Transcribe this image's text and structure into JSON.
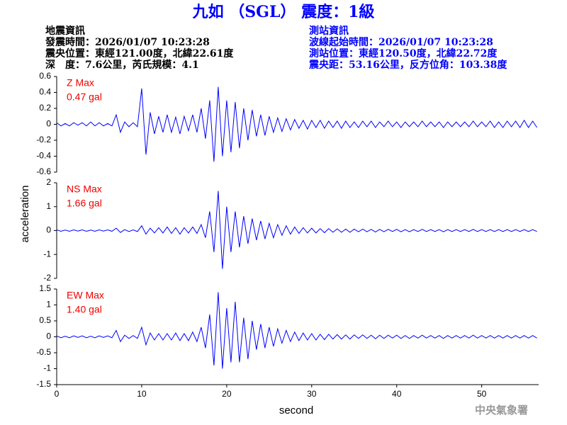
{
  "title": "九如 （SGL） 震度：1級",
  "event_info": [
    "地震資訊",
    "發震時間：2026/01/07 10:23:28",
    "震央位置：東經121.00度，北緯22.61度",
    "深　度：7.6公里，芮氏規模：4.1"
  ],
  "station_info": [
    "測站資訊",
    "波線起始時間：2026/01/07 10:23:28",
    "測站位置：東經120.50度，北緯22.72度",
    "震央距：53.16公里，反方位角：103.38度"
  ],
  "ylabel": "acceleration",
  "footer": "中央氣象署",
  "chart_data": [
    {
      "type": "line",
      "annotation": [
        "Z Max",
        "0.47 gal"
      ],
      "color": "#0000ff",
      "xlim": [
        0,
        56.7
      ],
      "ylim": [
        -0.6,
        0.6
      ],
      "yticks": [
        -0.6,
        -0.4,
        -0.2,
        0,
        0.2,
        0.4,
        0.6
      ],
      "x": [
        0,
        0.5,
        1,
        1.5,
        2,
        2.5,
        3,
        3.5,
        4,
        4.5,
        5,
        5.5,
        6,
        6.5,
        7,
        7.5,
        8,
        8.5,
        9,
        9.5,
        10,
        10.5,
        11,
        11.5,
        12,
        12.5,
        13,
        13.5,
        14,
        14.5,
        15,
        15.5,
        16,
        16.5,
        17,
        17.5,
        18,
        18.5,
        19,
        19.5,
        20,
        20.5,
        21,
        21.5,
        22,
        22.5,
        23,
        23.5,
        24,
        24.5,
        25,
        25.5,
        26,
        26.5,
        27,
        27.5,
        28,
        28.5,
        29,
        29.5,
        30,
        30.5,
        31,
        31.5,
        32,
        32.5,
        33,
        33.5,
        34,
        34.5,
        35,
        35.5,
        36,
        36.5,
        37,
        37.5,
        38,
        38.5,
        39,
        39.5,
        40,
        40.5,
        41,
        41.5,
        42,
        42.5,
        43,
        43.5,
        44,
        44.5,
        45,
        45.5,
        46,
        46.5,
        47,
        47.5,
        48,
        48.5,
        49,
        49.5,
        50,
        50.5,
        51,
        51.5,
        52,
        52.5,
        53,
        53.5,
        54,
        54.5,
        55,
        55.5,
        56,
        56.5
      ],
      "values": [
        0.02,
        -0.02,
        0.01,
        -0.02,
        0.02,
        -0.01,
        0.02,
        -0.02,
        0.03,
        -0.02,
        0.02,
        -0.02,
        0.01,
        -0.02,
        0.12,
        -0.1,
        0.03,
        -0.03,
        0.02,
        -0.03,
        0.45,
        -0.38,
        0.15,
        -0.12,
        0.1,
        -0.1,
        0.12,
        -0.1,
        0.09,
        -0.12,
        0.1,
        -0.08,
        0.12,
        -0.1,
        0.2,
        -0.18,
        0.3,
        -0.47,
        0.47,
        -0.4,
        0.3,
        -0.35,
        0.28,
        -0.3,
        0.2,
        -0.2,
        0.18,
        -0.15,
        0.12,
        -0.14,
        0.1,
        -0.1,
        0.08,
        -0.09,
        0.07,
        -0.07,
        0.06,
        -0.05,
        0.05,
        -0.06,
        0.05,
        -0.04,
        0.05,
        -0.05,
        0.04,
        -0.04,
        0.04,
        -0.05,
        0.04,
        -0.04,
        0.03,
        -0.04,
        0.04,
        -0.03,
        0.04,
        -0.04,
        0.03,
        -0.03,
        0.04,
        -0.03,
        0.03,
        -0.04,
        0.03,
        -0.03,
        0.03,
        -0.03,
        0.04,
        -0.03,
        0.03,
        -0.03,
        0.03,
        -0.04,
        0.03,
        -0.03,
        0.03,
        -0.03,
        0.03,
        -0.03,
        0.04,
        -0.03,
        0.03,
        -0.03,
        0.04,
        -0.04,
        0.03,
        -0.04,
        0.04,
        -0.03,
        0.04,
        -0.04,
        0.05,
        -0.04,
        0.04,
        -0.04
      ]
    },
    {
      "type": "line",
      "annotation": [
        "NS Max",
        "1.66 gal"
      ],
      "color": "#0000ff",
      "xlim": [
        0,
        56.7
      ],
      "ylim": [
        -2,
        2
      ],
      "yticks": [
        -2,
        -1,
        0,
        1,
        2
      ],
      "x": [
        0,
        0.5,
        1,
        1.5,
        2,
        2.5,
        3,
        3.5,
        4,
        4.5,
        5,
        5.5,
        6,
        6.5,
        7,
        7.5,
        8,
        8.5,
        9,
        9.5,
        10,
        10.5,
        11,
        11.5,
        12,
        12.5,
        13,
        13.5,
        14,
        14.5,
        15,
        15.5,
        16,
        16.5,
        17,
        17.5,
        18,
        18.5,
        19,
        19.5,
        20,
        20.5,
        21,
        21.5,
        22,
        22.5,
        23,
        23.5,
        24,
        24.5,
        25,
        25.5,
        26,
        26.5,
        27,
        27.5,
        28,
        28.5,
        29,
        29.5,
        30,
        30.5,
        31,
        31.5,
        32,
        32.5,
        33,
        33.5,
        34,
        34.5,
        35,
        35.5,
        36,
        36.5,
        37,
        37.5,
        38,
        38.5,
        39,
        39.5,
        40,
        40.5,
        41,
        41.5,
        42,
        42.5,
        43,
        43.5,
        44,
        44.5,
        45,
        45.5,
        46,
        46.5,
        47,
        47.5,
        48,
        48.5,
        49,
        49.5,
        50,
        50.5,
        51,
        51.5,
        52,
        52.5,
        53,
        53.5,
        54,
        54.5,
        55,
        55.5,
        56,
        56.5
      ],
      "values": [
        0.03,
        -0.03,
        0.02,
        -0.03,
        0.03,
        -0.02,
        0.03,
        -0.03,
        0.02,
        -0.03,
        0.03,
        -0.02,
        0.03,
        -0.03,
        0.1,
        -0.08,
        0.04,
        -0.04,
        0.03,
        -0.04,
        0.2,
        -0.15,
        0.1,
        -0.1,
        0.12,
        -0.1,
        0.15,
        -0.12,
        0.12,
        -0.15,
        0.12,
        -0.1,
        0.15,
        -0.12,
        0.25,
        -0.3,
        0.8,
        -0.9,
        1.66,
        -1.6,
        1.0,
        -0.9,
        0.8,
        -0.7,
        0.6,
        -0.55,
        0.5,
        -0.4,
        0.4,
        -0.35,
        0.3,
        -0.3,
        0.25,
        -0.2,
        0.2,
        -0.15,
        0.15,
        -0.12,
        0.12,
        -0.1,
        0.1,
        -0.1,
        0.08,
        -0.09,
        0.08,
        -0.07,
        0.07,
        -0.07,
        0.06,
        -0.07,
        0.06,
        -0.05,
        0.06,
        -0.05,
        0.05,
        -0.06,
        0.05,
        -0.05,
        0.05,
        -0.04,
        0.05,
        -0.05,
        0.04,
        -0.05,
        0.04,
        -0.04,
        0.05,
        -0.04,
        0.04,
        -0.04,
        0.04,
        -0.05,
        0.04,
        -0.04,
        0.04,
        -0.04,
        0.04,
        -0.04,
        0.05,
        -0.04,
        0.04,
        -0.04,
        0.04,
        -0.04,
        0.04,
        -0.04,
        0.04,
        -0.04,
        0.04,
        -0.04,
        0.04,
        -0.04,
        0.04,
        -0.04
      ]
    },
    {
      "type": "line",
      "annotation": [
        "EW Max",
        "1.40 gal"
      ],
      "color": "#0000ff",
      "xlabel": "second",
      "xlim": [
        0,
        56.7
      ],
      "xticks": [
        0,
        10,
        20,
        30,
        40,
        50
      ],
      "ylim": [
        -1.5,
        1.5
      ],
      "yticks": [
        -1.5,
        -1,
        -0.5,
        0,
        0.5,
        1,
        1.5
      ],
      "x": [
        0,
        0.5,
        1,
        1.5,
        2,
        2.5,
        3,
        3.5,
        4,
        4.5,
        5,
        5.5,
        6,
        6.5,
        7,
        7.5,
        8,
        8.5,
        9,
        9.5,
        10,
        10.5,
        11,
        11.5,
        12,
        12.5,
        13,
        13.5,
        14,
        14.5,
        15,
        15.5,
        16,
        16.5,
        17,
        17.5,
        18,
        18.5,
        19,
        19.5,
        20,
        20.5,
        21,
        21.5,
        22,
        22.5,
        23,
        23.5,
        24,
        24.5,
        25,
        25.5,
        26,
        26.5,
        27,
        27.5,
        28,
        28.5,
        29,
        29.5,
        30,
        30.5,
        31,
        31.5,
        32,
        32.5,
        33,
        33.5,
        34,
        34.5,
        35,
        35.5,
        36,
        36.5,
        37,
        37.5,
        38,
        38.5,
        39,
        39.5,
        40,
        40.5,
        41,
        41.5,
        42,
        42.5,
        43,
        43.5,
        44,
        44.5,
        45,
        45.5,
        46,
        46.5,
        47,
        47.5,
        48,
        48.5,
        49,
        49.5,
        50,
        50.5,
        51,
        51.5,
        52,
        52.5,
        53,
        53.5,
        54,
        54.5,
        55,
        55.5,
        56,
        56.5
      ],
      "values": [
        0.03,
        -0.03,
        0.02,
        -0.03,
        0.03,
        -0.02,
        0.03,
        -0.03,
        0.02,
        -0.03,
        0.03,
        -0.02,
        0.03,
        -0.03,
        0.2,
        -0.15,
        0.05,
        -0.05,
        0.04,
        -0.05,
        0.3,
        -0.25,
        0.12,
        -0.1,
        0.1,
        -0.1,
        0.1,
        -0.1,
        0.12,
        -0.12,
        0.1,
        -0.12,
        0.15,
        -0.15,
        0.3,
        -0.35,
        0.7,
        -0.9,
        1.4,
        -1.0,
        0.9,
        -0.8,
        1.1,
        -0.8,
        0.6,
        -0.7,
        0.5,
        -0.4,
        0.4,
        -0.35,
        0.3,
        -0.3,
        0.25,
        -0.2,
        0.2,
        -0.15,
        0.15,
        -0.12,
        0.12,
        -0.1,
        0.1,
        -0.1,
        0.08,
        -0.09,
        0.08,
        -0.07,
        0.07,
        -0.07,
        0.06,
        -0.07,
        0.06,
        -0.05,
        0.06,
        -0.05,
        0.05,
        -0.06,
        0.05,
        -0.05,
        0.05,
        -0.04,
        0.05,
        -0.05,
        0.04,
        -0.05,
        0.04,
        -0.04,
        0.05,
        -0.04,
        0.04,
        -0.04,
        0.04,
        -0.05,
        0.04,
        -0.04,
        0.04,
        -0.04,
        0.04,
        -0.04,
        0.05,
        -0.04,
        0.04,
        -0.04,
        0.04,
        -0.04,
        0.04,
        -0.04,
        0.04,
        -0.04,
        0.04,
        -0.04,
        0.04,
        -0.04,
        0.04,
        -0.04
      ]
    }
  ]
}
